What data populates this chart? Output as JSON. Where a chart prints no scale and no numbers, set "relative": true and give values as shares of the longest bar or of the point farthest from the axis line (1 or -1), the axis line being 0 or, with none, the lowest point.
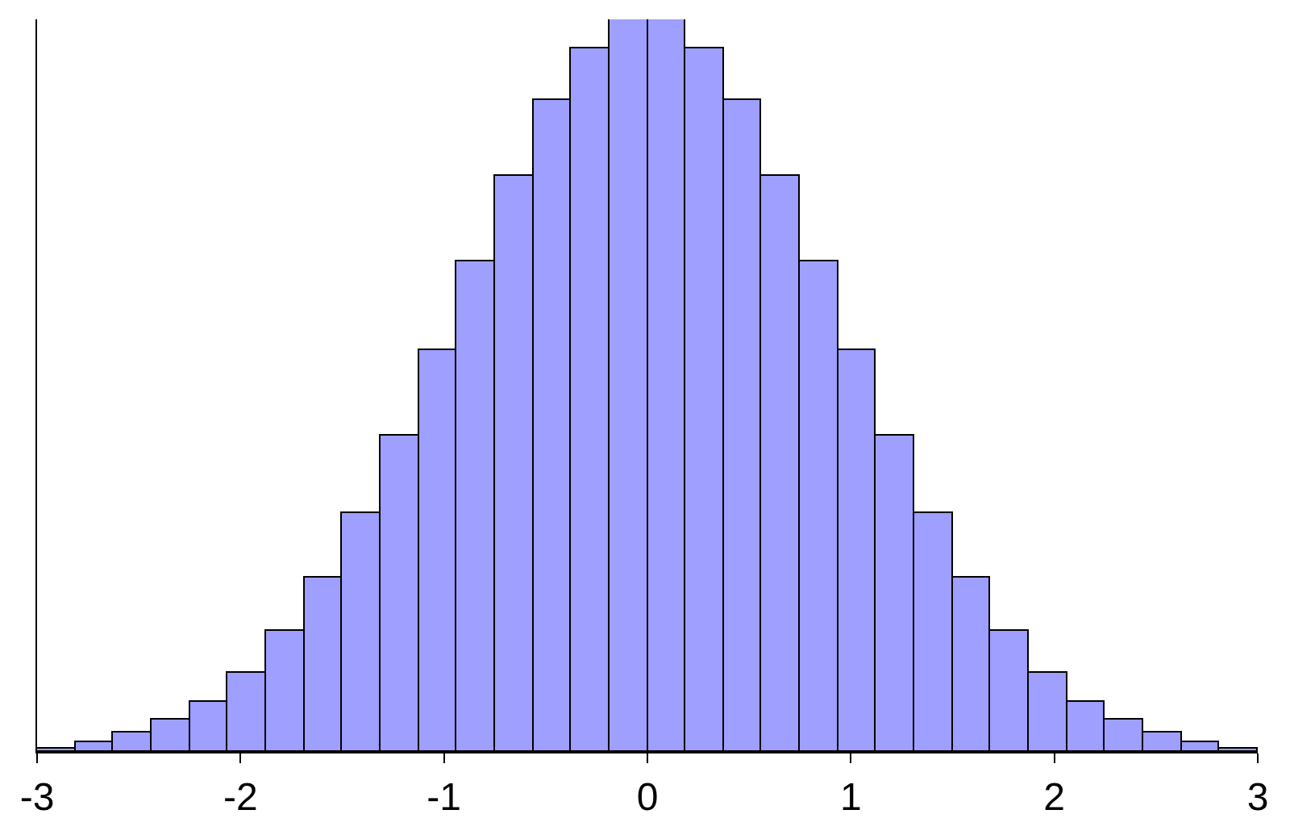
{
  "chart_data": {
    "type": "bar",
    "relative": true,
    "x": [
      -2.90625,
      -2.71875,
      -2.53125,
      -2.34375,
      -2.15625,
      -1.96875,
      -1.78125,
      -1.59375,
      -1.40625,
      -1.21875,
      -1.03125,
      -0.84375,
      -0.65625,
      -0.46875,
      -0.28125,
      -0.09375,
      0.09375,
      0.28125,
      0.46875,
      0.65625,
      0.84375,
      1.03125,
      1.21875,
      1.40625,
      1.59375,
      1.78125,
      1.96875,
      2.15625,
      2.34375,
      2.53125,
      2.71875,
      2.90625
    ],
    "values": [
      0.005,
      0.014,
      0.026,
      0.043,
      0.069,
      0.109,
      0.165,
      0.238,
      0.325,
      0.431,
      0.549,
      0.67,
      0.787,
      0.889,
      0.961,
      1,
      1,
      0.961,
      0.889,
      0.787,
      0.67,
      0.549,
      0.431,
      0.325,
      0.238,
      0.165,
      0.109,
      0.069,
      0.043,
      0.026,
      0.014,
      0.005
    ],
    "color": "#9f9fff",
    "xlim": [
      -3,
      3
    ],
    "xticks": [
      -3,
      -2,
      -1,
      0,
      1,
      2,
      3
    ],
    "grid": false,
    "legend": false
  }
}
